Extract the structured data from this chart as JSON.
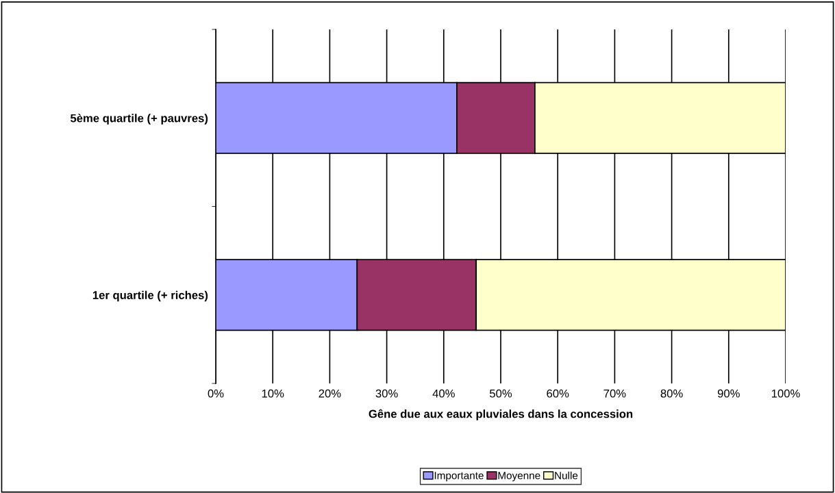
{
  "chart_data": {
    "type": "bar",
    "orientation": "horizontal",
    "stacked": true,
    "xlabel": "Gêne due aux eaux pluviales dans la concession",
    "categories": [
      "5ème quartile (+ pauvres)",
      "1er quartile (+ riches)"
    ],
    "series": [
      {
        "name": "Importante",
        "color": "#9999ff",
        "values": [
          42.3,
          24.8
        ]
      },
      {
        "name": "Moyenne",
        "color": "#993366",
        "values": [
          13.7,
          20.9
        ]
      },
      {
        "name": "Nulle",
        "color": "#ffffcc",
        "values": [
          44.0,
          54.3
        ]
      }
    ],
    "xlim": [
      0,
      100
    ],
    "xticks": [
      {
        "value": 0,
        "label": "0%"
      },
      {
        "value": 10,
        "label": "10%"
      },
      {
        "value": 20,
        "label": "20%"
      },
      {
        "value": 30,
        "label": "30%"
      },
      {
        "value": 40,
        "label": "40%"
      },
      {
        "value": 50,
        "label": "50%"
      },
      {
        "value": 60,
        "label": "60%"
      },
      {
        "value": 70,
        "label": "70%"
      },
      {
        "value": 80,
        "label": "80%"
      },
      {
        "value": 90,
        "label": "90%"
      },
      {
        "value": 100,
        "label": "100%"
      }
    ],
    "grid": "x",
    "legend": "bottom"
  }
}
